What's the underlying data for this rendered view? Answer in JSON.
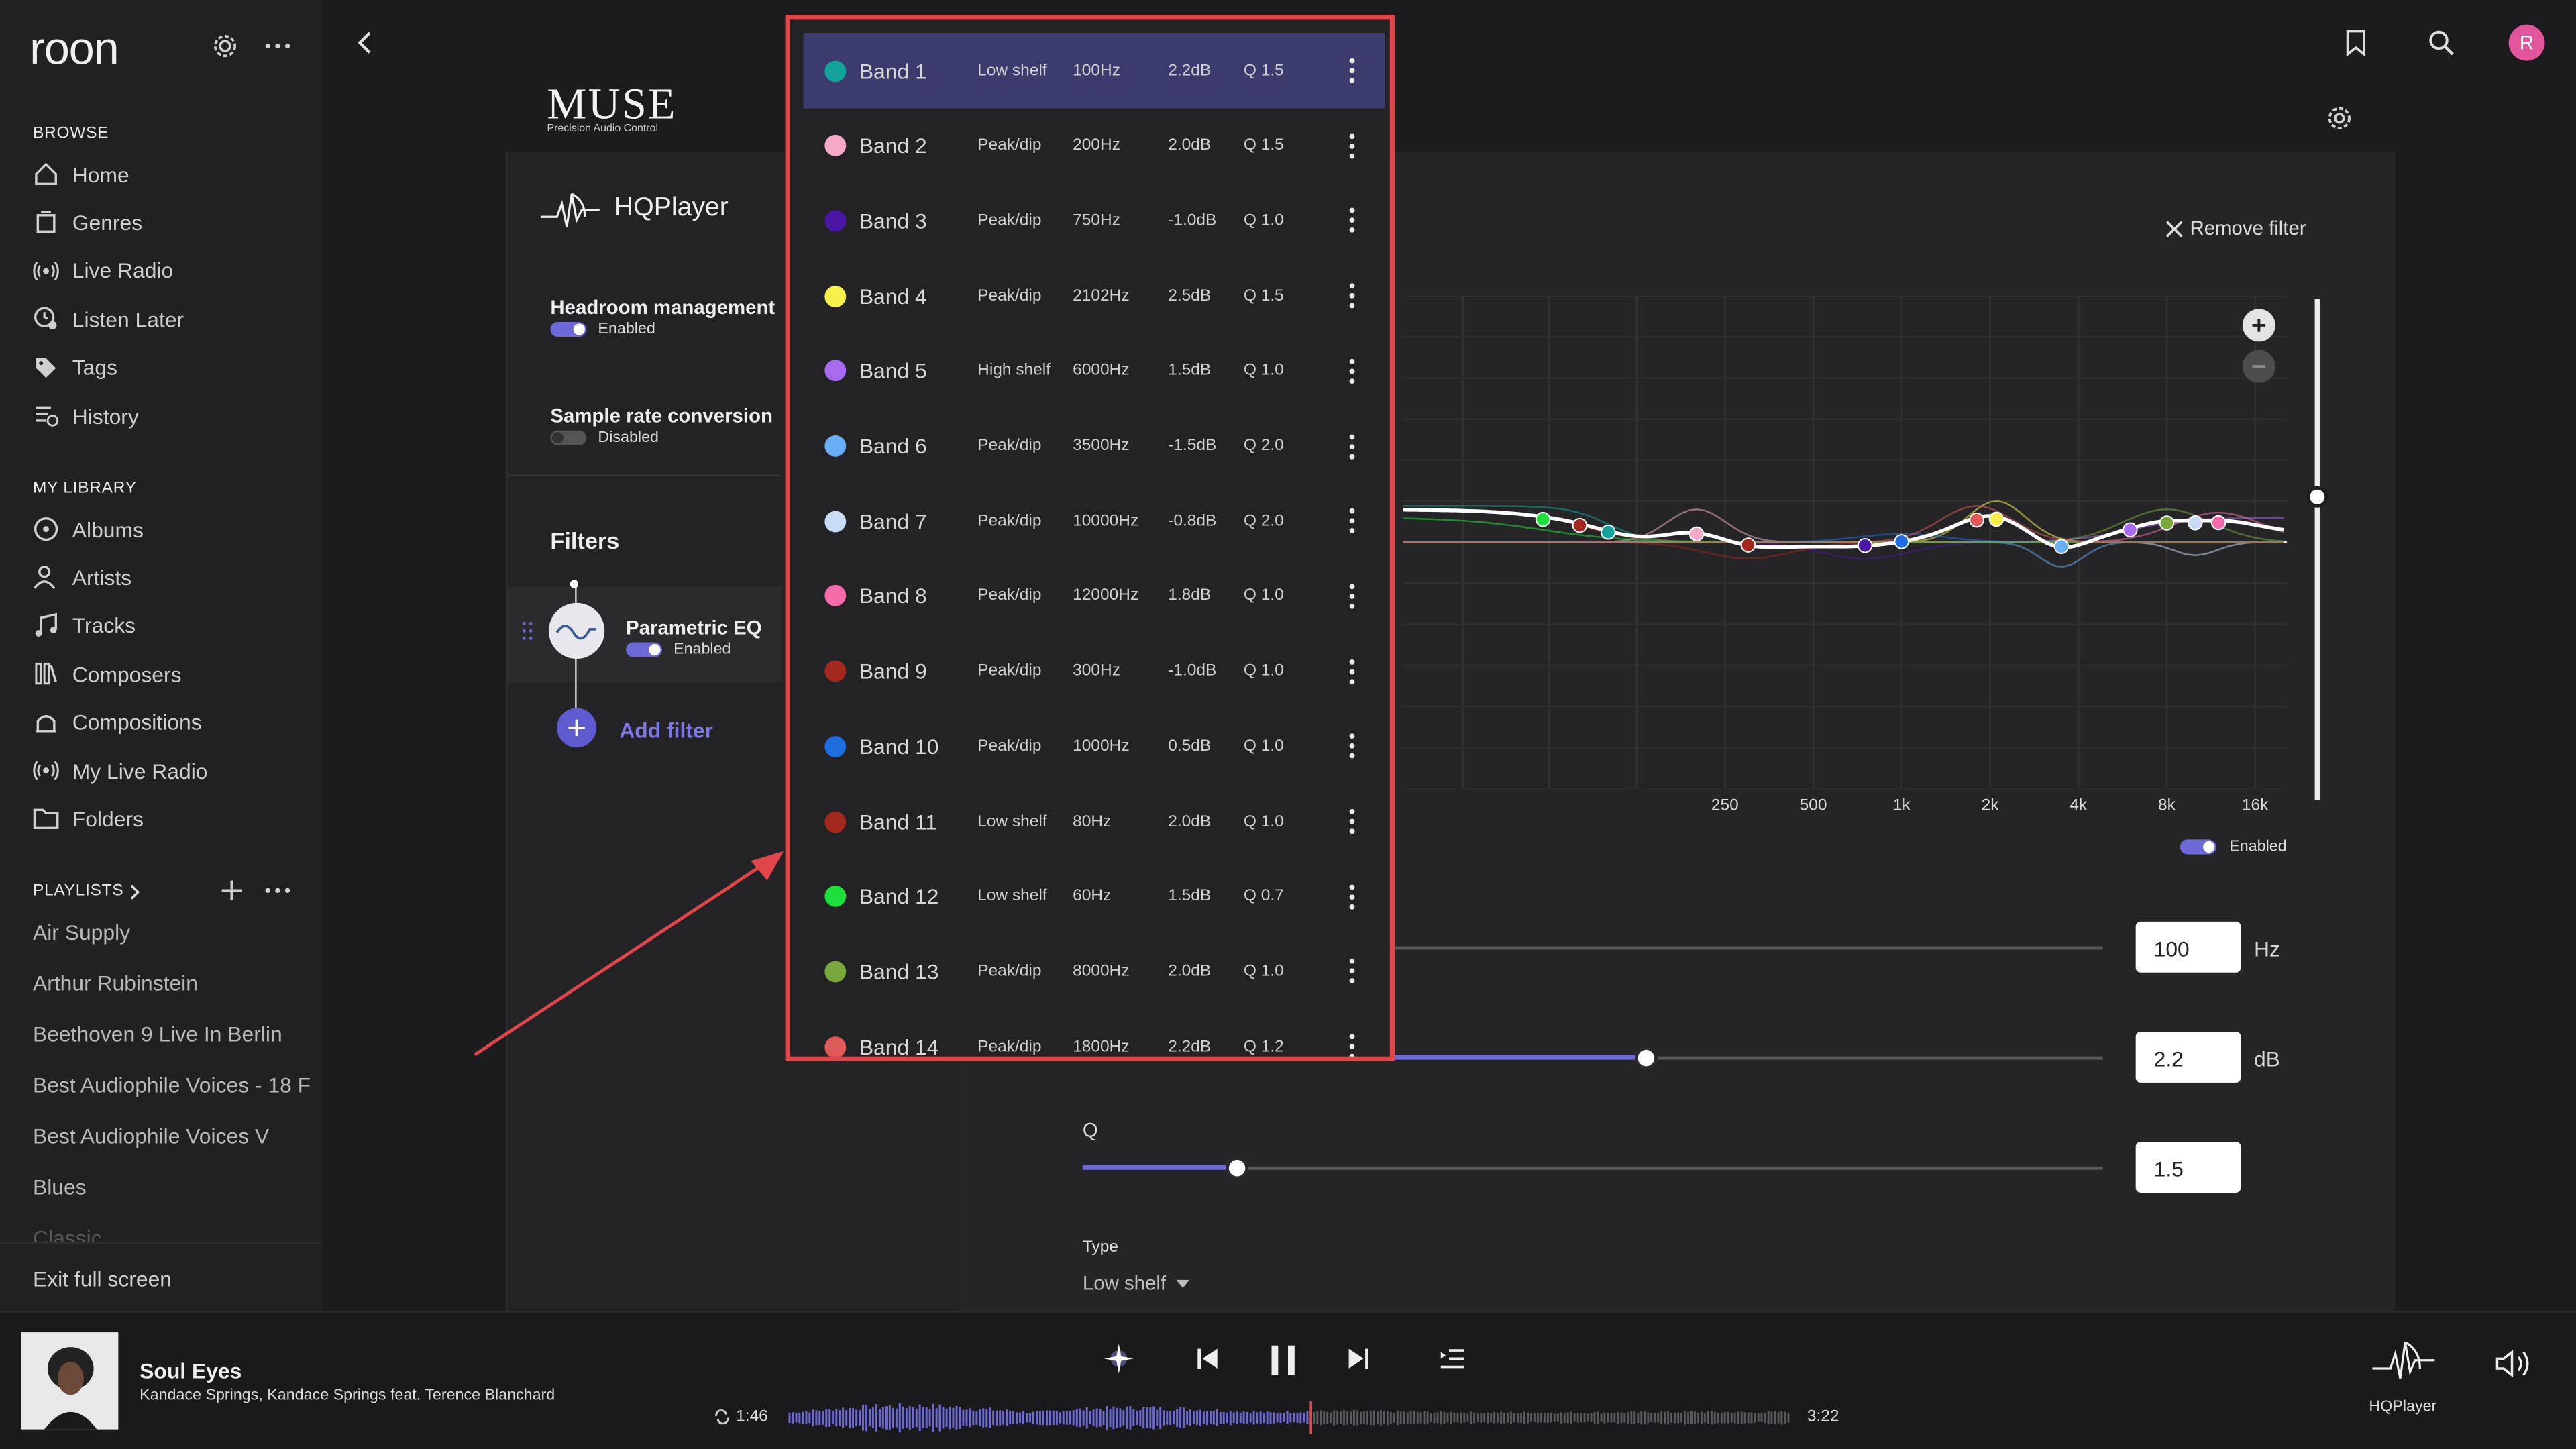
{
  "app": {
    "logo": "roon",
    "avatar_initial": "R",
    "accent": "#6d6ad8",
    "avatar_color": "#e0559b"
  },
  "sidebar": {
    "browse_header": "BROWSE",
    "browse": [
      {
        "label": "Home",
        "icon": "home-icon"
      },
      {
        "label": "Genres",
        "icon": "genres-icon"
      },
      {
        "label": "Live Radio",
        "icon": "radio-icon"
      },
      {
        "label": "Listen Later",
        "icon": "clock-icon"
      },
      {
        "label": "Tags",
        "icon": "tag-icon"
      },
      {
        "label": "History",
        "icon": "history-icon"
      }
    ],
    "library_header": "MY LIBRARY",
    "library": [
      {
        "label": "Albums",
        "icon": "album-icon"
      },
      {
        "label": "Artists",
        "icon": "artist-icon"
      },
      {
        "label": "Tracks",
        "icon": "music-note-icon"
      },
      {
        "label": "Composers",
        "icon": "composers-icon"
      },
      {
        "label": "Compositions",
        "icon": "compositions-icon"
      },
      {
        "label": "My Live Radio",
        "icon": "radio-icon"
      },
      {
        "label": "Folders",
        "icon": "folder-icon"
      }
    ],
    "playlists_header": "PLAYLISTS",
    "playlists": [
      "Air Supply",
      "Arthur Rubinstein",
      "Beethoven 9 Live In Berlin",
      "Best Audiophile Voices - 18 F",
      "Best Audiophile Voices V",
      "Blues",
      "Classic"
    ],
    "exit_fullscreen": "Exit full screen"
  },
  "muse": {
    "brand": "MUSE",
    "tagline": "Precision Audio Control"
  },
  "hqplayer": {
    "title": "HQPlayer",
    "headroom_label": "Headroom management",
    "headroom_status": "Enabled",
    "src_label": "Sample rate conversion",
    "src_status": "Disabled",
    "filters_header": "Filters",
    "filter_name": "Parametric EQ",
    "filter_status": "Enabled",
    "add_filter": "Add filter"
  },
  "eq": {
    "remove_filter": "Remove filter",
    "freq_ticks": [
      "250",
      "500",
      "1k",
      "2k",
      "4k",
      "8k",
      "16k"
    ],
    "enabled_label": "Enabled",
    "frequency_value": "100",
    "frequency_unit": "Hz",
    "gain_value": "2.2",
    "gain_unit": "dB",
    "gain_fraction": 0.55,
    "q_label": "Q",
    "q_value": "1.5",
    "q_fraction": 0.15,
    "type_label": "Type",
    "type_value": "Low shelf"
  },
  "bands": [
    {
      "name": "Band 1",
      "type": "Low shelf",
      "freq": "100Hz",
      "gain": "2.2dB",
      "q": "Q 1.5",
      "color": "#12a39a",
      "selected": true
    },
    {
      "name": "Band 2",
      "type": "Peak/dip",
      "freq": "200Hz",
      "gain": "2.0dB",
      "q": "Q 1.5",
      "color": "#f5a8c8"
    },
    {
      "name": "Band 3",
      "type": "Peak/dip",
      "freq": "750Hz",
      "gain": "-1.0dB",
      "q": "Q 1.0",
      "color": "#4b16a3"
    },
    {
      "name": "Band 4",
      "type": "Peak/dip",
      "freq": "2102Hz",
      "gain": "2.5dB",
      "q": "Q 1.5",
      "color": "#f5f04a"
    },
    {
      "name": "Band 5",
      "type": "High shelf",
      "freq": "6000Hz",
      "gain": "1.5dB",
      "q": "Q 1.0",
      "color": "#a86af0"
    },
    {
      "name": "Band 6",
      "type": "Peak/dip",
      "freq": "3500Hz",
      "gain": "-1.5dB",
      "q": "Q 2.0",
      "color": "#6aaef5"
    },
    {
      "name": "Band 7",
      "type": "Peak/dip",
      "freq": "10000Hz",
      "gain": "-0.8dB",
      "q": "Q 2.0",
      "color": "#c8dcf5"
    },
    {
      "name": "Band 8",
      "type": "Peak/dip",
      "freq": "12000Hz",
      "gain": "1.8dB",
      "q": "Q 1.0",
      "color": "#f56aa8"
    },
    {
      "name": "Band 9",
      "type": "Peak/dip",
      "freq": "300Hz",
      "gain": "-1.0dB",
      "q": "Q 1.0",
      "color": "#a3281e"
    },
    {
      "name": "Band 10",
      "type": "Peak/dip",
      "freq": "1000Hz",
      "gain": "0.5dB",
      "q": "Q 1.0",
      "color": "#1e6ee0"
    },
    {
      "name": "Band 11",
      "type": "Low shelf",
      "freq": "80Hz",
      "gain": "2.0dB",
      "q": "Q 1.0",
      "color": "#a3281e"
    },
    {
      "name": "Band 12",
      "type": "Low shelf",
      "freq": "60Hz",
      "gain": "1.5dB",
      "q": "Q 0.7",
      "color": "#1ee03c"
    },
    {
      "name": "Band 13",
      "type": "Peak/dip",
      "freq": "8000Hz",
      "gain": "2.0dB",
      "q": "Q 1.0",
      "color": "#7aa83c"
    },
    {
      "name": "Band 14",
      "type": "Peak/dip",
      "freq": "1800Hz",
      "gain": "2.2dB",
      "q": "Q 1.2",
      "color": "#e05a5a"
    }
  ],
  "player": {
    "track": "Soul Eyes",
    "artist": "Kandace Springs, Kandace Springs feat. Terence Blanchard",
    "elapsed": "1:46",
    "duration": "3:22",
    "progress": 0.52,
    "zone": "HQPlayer"
  }
}
